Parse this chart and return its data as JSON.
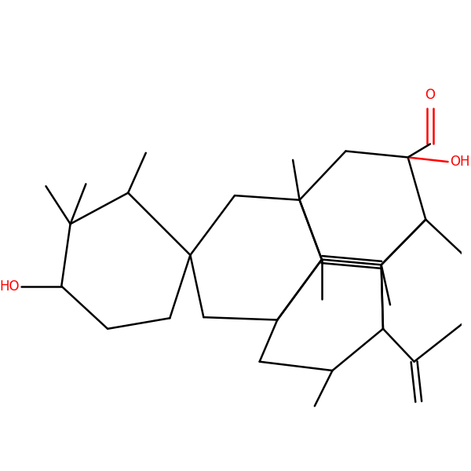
{
  "background_color": "#ffffff",
  "bond_color": "#000000",
  "red_color": "#ff0000",
  "line_width": 1.8,
  "font_size": 12,
  "figsize": [
    6.0,
    6.0
  ],
  "dpi": 100,
  "xlim": [
    0,
    10
  ],
  "ylim": [
    0,
    10
  ]
}
